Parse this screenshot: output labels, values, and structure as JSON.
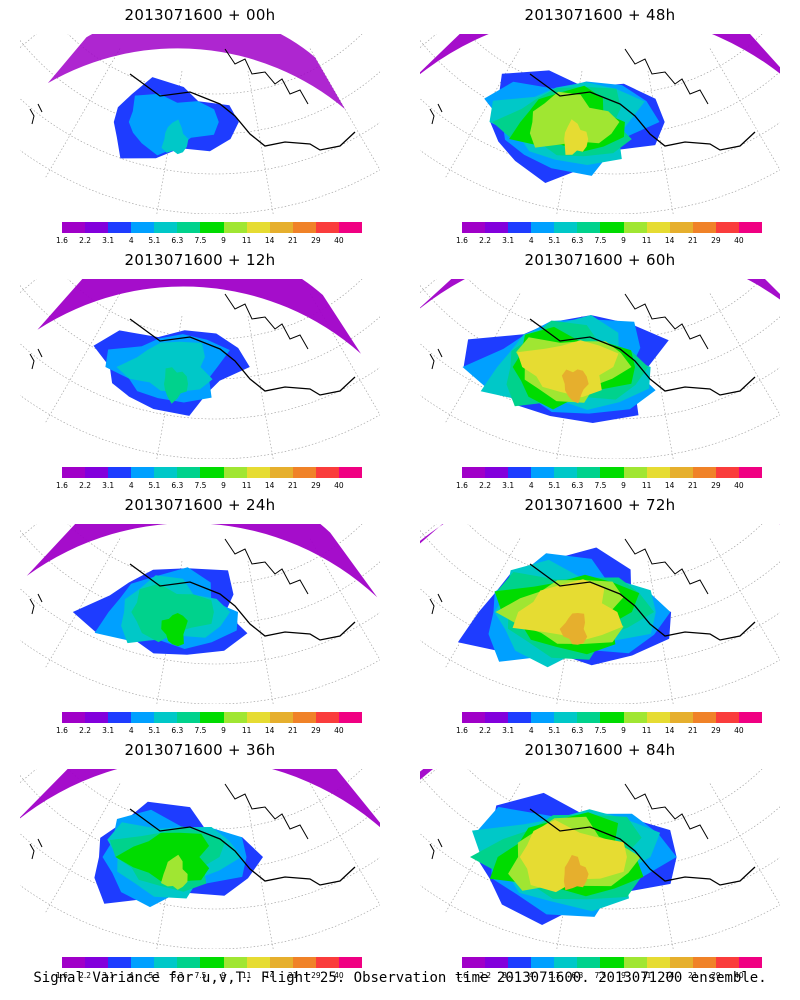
{
  "caption": "Signal Variance for u,v,T. Flight 25. Observation time 2013071600. 2013071200 ensemble.",
  "colorbar": {
    "colors": [
      "#a000c8",
      "#8200dc",
      "#1e3cff",
      "#00a0ff",
      "#00c8c8",
      "#00d28c",
      "#00dc00",
      "#a0e632",
      "#e6dc32",
      "#e6af2d",
      "#f08228",
      "#fa3c3c",
      "#f00082"
    ],
    "tick_labels": [
      "1.6",
      "2.2",
      "3.1",
      "4",
      "5.1",
      "6.3",
      "7.5",
      "9",
      "11",
      "14",
      "21",
      "29",
      "40"
    ]
  },
  "panels": [
    {
      "title": "2013071600 + 00h",
      "level": 0
    },
    {
      "title": "2013071600 + 48h",
      "level": 4
    },
    {
      "title": "2013071600 + 12h",
      "level": 1
    },
    {
      "title": "2013071600 + 60h",
      "level": 5
    },
    {
      "title": "2013071600 + 24h",
      "level": 2
    },
    {
      "title": "2013071600 + 72h",
      "level": 6
    },
    {
      "title": "2013071600 + 36h",
      "level": 3
    },
    {
      "title": "2013071600 + 84h",
      "level": 7
    }
  ]
}
